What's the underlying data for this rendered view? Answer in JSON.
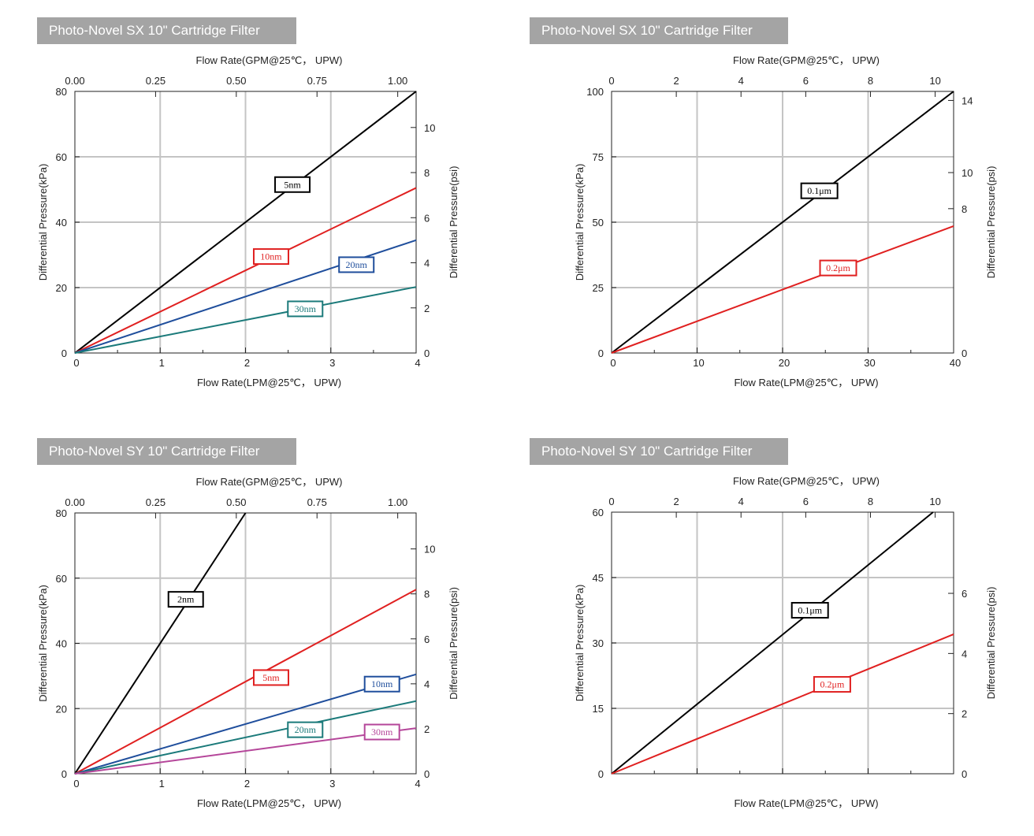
{
  "panels": [
    {
      "title": "Photo-Novel SX 10\" Cartridge Filter"
    },
    {
      "title": "Photo-Novel SX 10\" Cartridge Filter"
    },
    {
      "title": "Photo-Novel SY 10\" Cartridge Filter"
    },
    {
      "title": "Photo-Novel SY 10\" Cartridge Filter"
    }
  ],
  "chart_data": [
    {
      "type": "line",
      "title": "Photo-Novel SX 10\" Cartridge Filter",
      "xlabel": "Flow Rate(LPM@25℃， UPW)",
      "x2label": "Flow Rate(GPM@25℃， UPW)",
      "ylabel": "Differential Pressure(kPa)",
      "y2label": "Differential Pressure(psi)",
      "xlim": [
        0,
        4
      ],
      "ylim": [
        0,
        80
      ],
      "x2lim": [
        0,
        1.057
      ],
      "y2lim": [
        0,
        11.6
      ],
      "xticks": [
        "0",
        "1",
        "2",
        "3",
        "4"
      ],
      "yticks": [
        "0",
        "20",
        "40",
        "60",
        "80"
      ],
      "x2ticks": [
        {
          "v": 0,
          "t": "0.00"
        },
        {
          "v": 0.25,
          "t": "0.25"
        },
        {
          "v": 0.5,
          "t": "0.50"
        },
        {
          "v": 0.75,
          "t": "0.75"
        },
        {
          "v": 1.0,
          "t": "1.00"
        }
      ],
      "y2ticks": [
        {
          "v": 0,
          "t": "0"
        },
        {
          "v": 2,
          "t": "2"
        },
        {
          "v": 4,
          "t": "4"
        },
        {
          "v": 6,
          "t": "6"
        },
        {
          "v": 8,
          "t": "8"
        },
        {
          "v": 10,
          "t": "10"
        }
      ],
      "grid": true,
      "series": [
        {
          "name": "5nm",
          "color": "#000000",
          "x": [
            0,
            4
          ],
          "y": [
            0,
            80
          ],
          "label_at": [
            2.55,
            51.5
          ],
          "label_w": 44
        },
        {
          "name": "10nm",
          "color": "#e02020",
          "x": [
            0,
            4
          ],
          "y": [
            0,
            50.5
          ],
          "label_at": [
            2.3,
            29.5
          ],
          "label_w": 44
        },
        {
          "name": "20nm",
          "color": "#1f4e9c",
          "x": [
            0,
            4
          ],
          "y": [
            0,
            34.5
          ],
          "label_at": [
            3.3,
            27
          ],
          "label_w": 44
        },
        {
          "name": "30nm",
          "color": "#1b7a7a",
          "x": [
            0,
            4
          ],
          "y": [
            0,
            20.2
          ],
          "label_at": [
            2.7,
            13.5
          ],
          "label_w": 44
        }
      ]
    },
    {
      "type": "line",
      "title": "Photo-Novel SX 10\" Cartridge Filter",
      "xlabel": "Flow Rate(LPM@25℃， UPW)",
      "x2label": "Flow Rate(GPM@25℃， UPW)",
      "ylabel": "Differential Pressure(kPa)",
      "y2label": "Differential Pressure(psi)",
      "xlim": [
        0,
        40
      ],
      "ylim": [
        0,
        100
      ],
      "x2lim": [
        0,
        10.57
      ],
      "y2lim": [
        0,
        14.5
      ],
      "xticks": [
        "0",
        "10",
        "20",
        "30",
        "40"
      ],
      "yticks": [
        "0",
        "25",
        "50",
        "75",
        "100"
      ],
      "x2ticks": [
        {
          "v": 0,
          "t": "0"
        },
        {
          "v": 2,
          "t": "2"
        },
        {
          "v": 4,
          "t": "4"
        },
        {
          "v": 6,
          "t": "6"
        },
        {
          "v": 8,
          "t": "8"
        },
        {
          "v": 10,
          "t": "10"
        }
      ],
      "y2ticks": [
        {
          "v": 0,
          "t": "0"
        },
        {
          "v": 8,
          "t": "8"
        },
        {
          "v": 10,
          "t": "10"
        },
        {
          "v": 14,
          "t": "14"
        }
      ],
      "grid": true,
      "series": [
        {
          "name": "0.1μm",
          "color": "#000000",
          "x": [
            0,
            40
          ],
          "y": [
            0,
            100
          ],
          "label_at": [
            24.3,
            62
          ],
          "label_w": 46
        },
        {
          "name": "0.2μm",
          "color": "#e02020",
          "x": [
            0,
            40
          ],
          "y": [
            0,
            48.5
          ],
          "label_at": [
            26.5,
            32.5
          ],
          "label_w": 46
        }
      ]
    },
    {
      "type": "line",
      "title": "Photo-Novel SY 10\" Cartridge Filter",
      "xlabel": "Flow Rate(LPM@25℃， UPW)",
      "x2label": "Flow Rate(GPM@25℃， UPW)",
      "ylabel": "Differential Pressure(kPa)",
      "y2label": "Differential Pressure(psi)",
      "xlim": [
        0,
        4
      ],
      "ylim": [
        0,
        80
      ],
      "x2lim": [
        0,
        1.057
      ],
      "y2lim": [
        0,
        11.6
      ],
      "xticks": [
        "0",
        "1",
        "2",
        "3",
        "4"
      ],
      "yticks": [
        "0",
        "20",
        "40",
        "60",
        "80"
      ],
      "x2ticks": [
        {
          "v": 0,
          "t": "0.00"
        },
        {
          "v": 0.25,
          "t": "0.25"
        },
        {
          "v": 0.5,
          "t": "0.50"
        },
        {
          "v": 0.75,
          "t": "0.75"
        },
        {
          "v": 1.0,
          "t": "1.00"
        }
      ],
      "y2ticks": [
        {
          "v": 0,
          "t": "0"
        },
        {
          "v": 2,
          "t": "2"
        },
        {
          "v": 4,
          "t": "4"
        },
        {
          "v": 6,
          "t": "6"
        },
        {
          "v": 8,
          "t": "8"
        },
        {
          "v": 10,
          "t": "10"
        }
      ],
      "grid": true,
      "series": [
        {
          "name": "2nm",
          "color": "#000000",
          "x": [
            0,
            2
          ],
          "y": [
            0,
            80
          ],
          "label_at": [
            1.3,
            53.5
          ],
          "label_w": 44
        },
        {
          "name": "5nm",
          "color": "#e02020",
          "x": [
            0,
            4
          ],
          "y": [
            0,
            56.5
          ],
          "label_at": [
            2.3,
            29.5
          ],
          "label_w": 44
        },
        {
          "name": "10nm",
          "color": "#1f4e9c",
          "x": [
            0,
            4
          ],
          "y": [
            0,
            30.5
          ],
          "label_at": [
            3.6,
            27.5
          ],
          "label_w": 44
        },
        {
          "name": "20nm",
          "color": "#1b7a7a",
          "x": [
            0,
            4
          ],
          "y": [
            0,
            22.3
          ],
          "label_at": [
            2.7,
            13.5
          ],
          "label_w": 44
        },
        {
          "name": "30nm",
          "color": "#b5469a",
          "x": [
            0,
            4
          ],
          "y": [
            0,
            14
          ],
          "label_at": [
            3.6,
            12.8
          ],
          "label_w": 44
        }
      ]
    },
    {
      "type": "line",
      "title": "Photo-Novel SY 10\" Cartridge Filter",
      "xlabel": "Flow Rate(LPM@25℃， UPW)",
      "x2label": "Flow Rate(GPM@25℃， UPW)",
      "ylabel": "Differential Pressure(kPa)",
      "y2label": "Differential Pressure(psi)",
      "xlim": [
        0,
        40
      ],
      "ylim": [
        0,
        60
      ],
      "x2lim": [
        0,
        10.57
      ],
      "y2lim": [
        0,
        8.7
      ],
      "xticks": [],
      "yticks": [
        "0",
        "15",
        "30",
        "45",
        "60"
      ],
      "x2ticks": [
        {
          "v": 0,
          "t": "0"
        },
        {
          "v": 2,
          "t": "2"
        },
        {
          "v": 4,
          "t": "4"
        },
        {
          "v": 6,
          "t": "6"
        },
        {
          "v": 8,
          "t": "8"
        },
        {
          "v": 10,
          "t": "10"
        }
      ],
      "y2ticks": [
        {
          "v": 0,
          "t": "0"
        },
        {
          "v": 2,
          "t": "2"
        },
        {
          "v": 4,
          "t": "4"
        },
        {
          "v": 6,
          "t": "6"
        }
      ],
      "grid": true,
      "series": [
        {
          "name": "0.1μm",
          "color": "#000000",
          "x": [
            0,
            37.6
          ],
          "y": [
            0,
            60
          ],
          "label_at": [
            23.2,
            37.5
          ],
          "label_w": 46
        },
        {
          "name": "0.2μm",
          "color": "#e02020",
          "x": [
            0,
            40
          ],
          "y": [
            0,
            32
          ],
          "label_at": [
            25.8,
            20.5
          ],
          "label_w": 46
        }
      ]
    }
  ]
}
